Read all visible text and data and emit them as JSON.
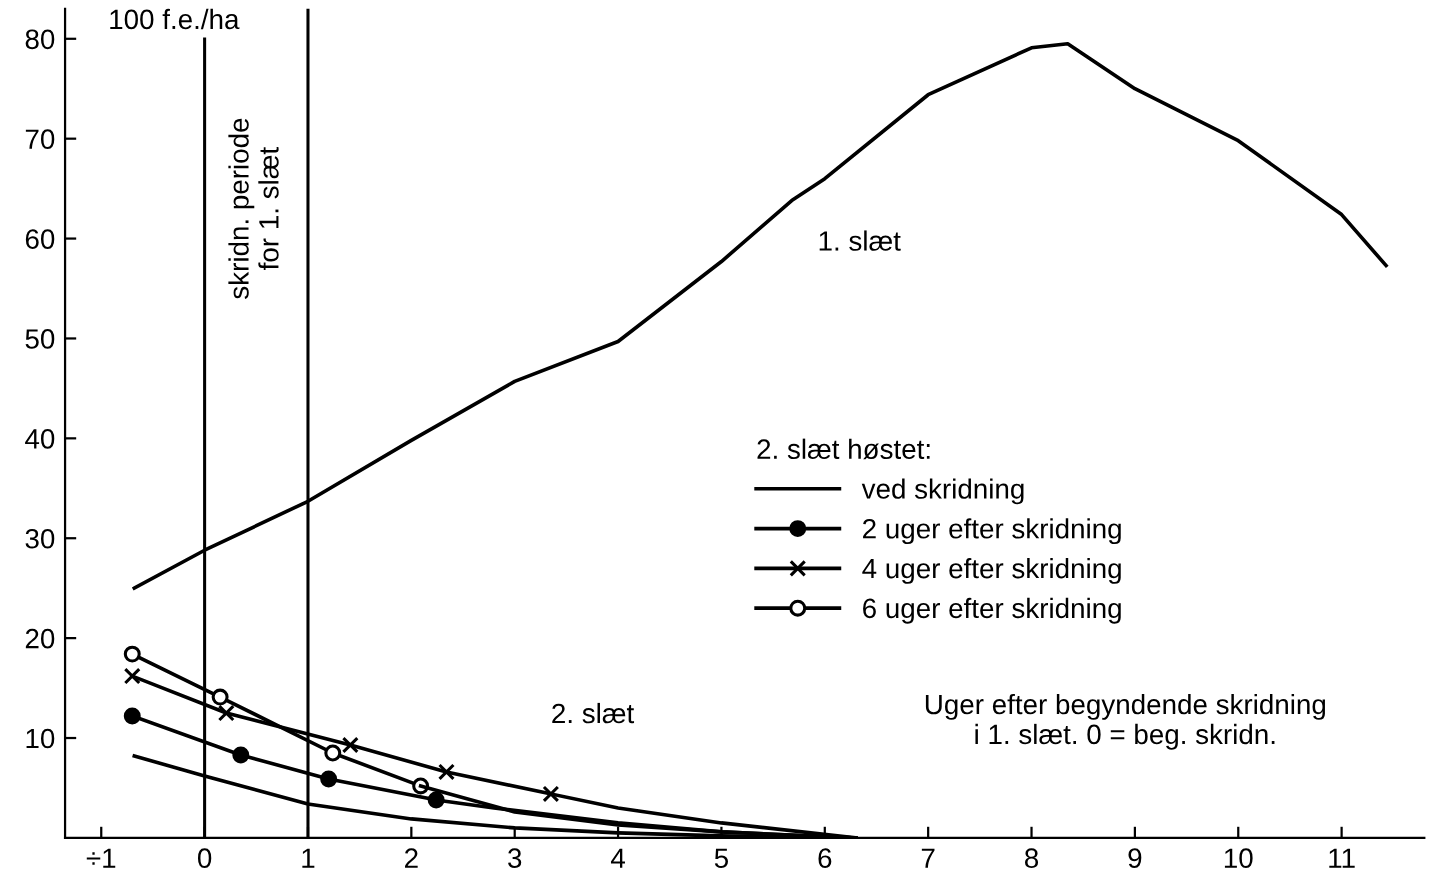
{
  "chart_data": {
    "type": "line",
    "ylabel": "100 f.e./ha",
    "xlabel": "Uger efter begyndende skridning\ni 1. slæt. 0 = beg. skridn.",
    "legend_title": "2. slæt høstet:",
    "legend": "right",
    "xlim": [
      -1.35,
      11.8
    ],
    "ylim": [
      0,
      83
    ],
    "xticks": [
      {
        "value": -1,
        "label": "÷1"
      },
      0,
      1,
      2,
      3,
      4,
      5,
      6,
      7,
      8,
      9,
      10,
      11
    ],
    "yticks": [
      10,
      20,
      30,
      40,
      50,
      60,
      70,
      80
    ],
    "ref_lines": [
      {
        "axis": "x",
        "value": 0,
        "label": "skridn. periode\nfor 1. slæt"
      },
      {
        "axis": "x",
        "value": 1
      }
    ],
    "annotations": [
      "2. slæt"
    ],
    "series": [
      {
        "name": "1. slæt",
        "color": "#000000",
        "x": [
          -0.68,
          0,
          1,
          2,
          3,
          4,
          5,
          5.68,
          6,
          7,
          8,
          8.35,
          9,
          10,
          11,
          11.43
        ],
        "values": [
          25,
          28.8,
          33.7,
          39.8,
          45.7,
          49.7,
          57.7,
          63.8,
          66,
          74.4,
          79.1,
          79.5,
          75,
          69.8,
          62.4,
          57.3
        ]
      },
      {
        "name": "ved skridning",
        "color": "#000000",
        "x": [
          -0.68,
          0,
          1,
          2,
          3,
          4,
          5,
          6.3
        ],
        "values": [
          8.2,
          6.2,
          3.4,
          1.9,
          1.0,
          0.5,
          0.2,
          0
        ]
      },
      {
        "name": "2 uger efter skridning",
        "color": "#000000",
        "marker": "circle",
        "x": [
          -0.7,
          0.35,
          1.2,
          2.24
        ],
        "values": [
          12.2,
          8.3,
          5.9,
          3.8
        ]
      },
      {
        "name": "4 uger efter skridning",
        "color": "#000000",
        "marker": "cross",
        "x": [
          -0.7,
          0.21,
          1.41,
          2.34,
          3.35
        ],
        "values": [
          16.2,
          12.5,
          9.3,
          6.6,
          4.4
        ]
      },
      {
        "name": "6 uger efter skridning",
        "color": "#000000",
        "marker": "circle",
        "x": [
          -0.7,
          0.15,
          1.24,
          2.09
        ],
        "values": [
          18.4,
          14.1,
          8.5,
          5.2
        ]
      },
      {
        "color": "#000000",
        "x": [
          2.24,
          2.8,
          4,
          5,
          6.3
        ],
        "values": [
          3.8,
          3.0,
          1.5,
          0.6,
          0
        ]
      },
      {
        "color": "#000000",
        "x": [
          3.35,
          4,
          5,
          6.3
        ],
        "values": [
          4.4,
          3.0,
          1.5,
          0
        ]
      },
      {
        "color": "#000000",
        "x": [
          2.09,
          3,
          4,
          5,
          6.3
        ],
        "values": [
          5.2,
          2.6,
          1.3,
          0.6,
          0
        ]
      }
    ]
  }
}
